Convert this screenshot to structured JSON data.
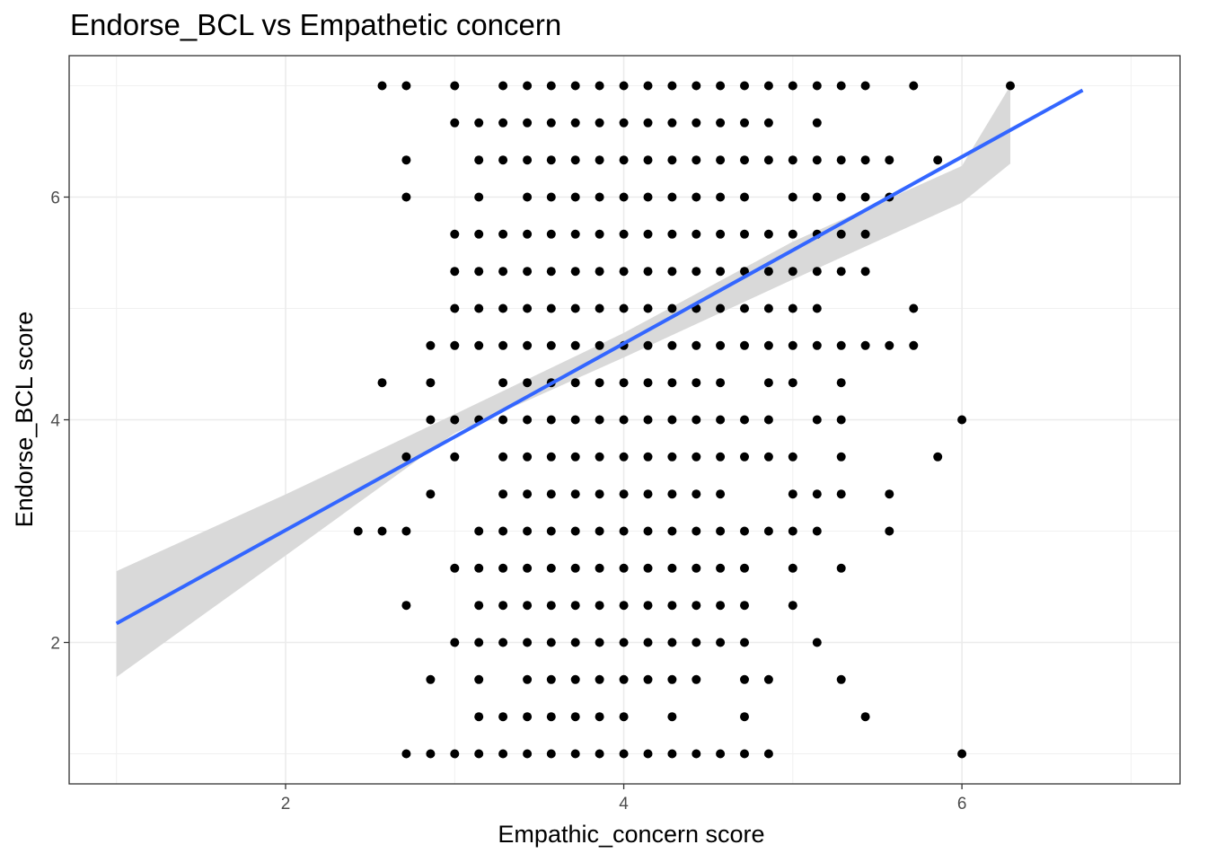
{
  "chart_data": {
    "type": "scatter",
    "title": "Endorse_BCL vs Empathetic concern",
    "xlabel": "Empathic_concern score",
    "ylabel": "Endorse_BCL score",
    "xlim": [
      0.72,
      7.29
    ],
    "ylim": [
      0.73,
      7.27
    ],
    "x_ticks": [
      2,
      4,
      6
    ],
    "y_ticks": [
      2,
      4,
      6
    ],
    "x_minor_ticks": [
      1,
      3,
      5,
      7
    ],
    "y_minor_ticks": [
      1,
      3,
      5,
      7
    ],
    "grid": true,
    "point_color": "#000000",
    "points": [
      [
        2.571,
        7
      ],
      [
        2.714,
        7
      ],
      [
        3,
        7
      ],
      [
        3.286,
        7
      ],
      [
        3.429,
        7
      ],
      [
        3.571,
        7
      ],
      [
        3.714,
        7
      ],
      [
        3.857,
        7
      ],
      [
        4,
        7
      ],
      [
        4.143,
        7
      ],
      [
        4.286,
        7
      ],
      [
        4.429,
        7
      ],
      [
        4.571,
        7
      ],
      [
        4.714,
        7
      ],
      [
        4.857,
        7
      ],
      [
        5,
        7
      ],
      [
        5.143,
        7
      ],
      [
        5.286,
        7
      ],
      [
        5.429,
        7
      ],
      [
        5.714,
        7
      ],
      [
        6.286,
        7
      ],
      [
        3,
        6.667
      ],
      [
        3.143,
        6.667
      ],
      [
        3.286,
        6.667
      ],
      [
        3.429,
        6.667
      ],
      [
        3.571,
        6.667
      ],
      [
        3.714,
        6.667
      ],
      [
        3.857,
        6.667
      ],
      [
        4,
        6.667
      ],
      [
        4.143,
        6.667
      ],
      [
        4.286,
        6.667
      ],
      [
        4.429,
        6.667
      ],
      [
        4.571,
        6.667
      ],
      [
        4.714,
        6.667
      ],
      [
        4.857,
        6.667
      ],
      [
        5.143,
        6.667
      ],
      [
        2.714,
        6.333
      ],
      [
        3.143,
        6.333
      ],
      [
        3.286,
        6.333
      ],
      [
        3.429,
        6.333
      ],
      [
        3.571,
        6.333
      ],
      [
        3.714,
        6.333
      ],
      [
        3.857,
        6.333
      ],
      [
        4,
        6.333
      ],
      [
        4.143,
        6.333
      ],
      [
        4.286,
        6.333
      ],
      [
        4.429,
        6.333
      ],
      [
        4.571,
        6.333
      ],
      [
        4.714,
        6.333
      ],
      [
        4.857,
        6.333
      ],
      [
        5,
        6.333
      ],
      [
        5.143,
        6.333
      ],
      [
        5.286,
        6.333
      ],
      [
        5.429,
        6.333
      ],
      [
        5.571,
        6.333
      ],
      [
        5.857,
        6.333
      ],
      [
        2.714,
        6
      ],
      [
        3.143,
        6
      ],
      [
        3.429,
        6
      ],
      [
        3.571,
        6
      ],
      [
        3.714,
        6
      ],
      [
        3.857,
        6
      ],
      [
        4,
        6
      ],
      [
        4.143,
        6
      ],
      [
        4.286,
        6
      ],
      [
        4.429,
        6
      ],
      [
        4.571,
        6
      ],
      [
        4.714,
        6
      ],
      [
        5,
        6
      ],
      [
        5.143,
        6
      ],
      [
        5.286,
        6
      ],
      [
        5.429,
        6
      ],
      [
        5.571,
        6
      ],
      [
        3,
        5.667
      ],
      [
        3.143,
        5.667
      ],
      [
        3.286,
        5.667
      ],
      [
        3.429,
        5.667
      ],
      [
        3.571,
        5.667
      ],
      [
        3.714,
        5.667
      ],
      [
        3.857,
        5.667
      ],
      [
        4,
        5.667
      ],
      [
        4.143,
        5.667
      ],
      [
        4.286,
        5.667
      ],
      [
        4.429,
        5.667
      ],
      [
        4.571,
        5.667
      ],
      [
        4.714,
        5.667
      ],
      [
        4.857,
        5.667
      ],
      [
        5,
        5.667
      ],
      [
        5.143,
        5.667
      ],
      [
        5.286,
        5.667
      ],
      [
        5.429,
        5.667
      ],
      [
        3,
        5.333
      ],
      [
        3.143,
        5.333
      ],
      [
        3.286,
        5.333
      ],
      [
        3.429,
        5.333
      ],
      [
        3.571,
        5.333
      ],
      [
        3.714,
        5.333
      ],
      [
        3.857,
        5.333
      ],
      [
        4,
        5.333
      ],
      [
        4.143,
        5.333
      ],
      [
        4.286,
        5.333
      ],
      [
        4.429,
        5.333
      ],
      [
        4.571,
        5.333
      ],
      [
        4.714,
        5.333
      ],
      [
        4.857,
        5.333
      ],
      [
        5,
        5.333
      ],
      [
        5.143,
        5.333
      ],
      [
        5.286,
        5.333
      ],
      [
        5.429,
        5.333
      ],
      [
        3,
        5
      ],
      [
        3.143,
        5
      ],
      [
        3.286,
        5
      ],
      [
        3.429,
        5
      ],
      [
        3.571,
        5
      ],
      [
        3.714,
        5
      ],
      [
        3.857,
        5
      ],
      [
        4,
        5
      ],
      [
        4.143,
        5
      ],
      [
        4.286,
        5
      ],
      [
        4.429,
        5
      ],
      [
        4.571,
        5
      ],
      [
        4.714,
        5
      ],
      [
        4.857,
        5
      ],
      [
        5,
        5
      ],
      [
        5.143,
        5
      ],
      [
        5.714,
        5
      ],
      [
        2.857,
        4.667
      ],
      [
        3,
        4.667
      ],
      [
        3.143,
        4.667
      ],
      [
        3.286,
        4.667
      ],
      [
        3.429,
        4.667
      ],
      [
        3.571,
        4.667
      ],
      [
        3.714,
        4.667
      ],
      [
        3.857,
        4.667
      ],
      [
        4,
        4.667
      ],
      [
        4.143,
        4.667
      ],
      [
        4.286,
        4.667
      ],
      [
        4.429,
        4.667
      ],
      [
        4.571,
        4.667
      ],
      [
        4.714,
        4.667
      ],
      [
        4.857,
        4.667
      ],
      [
        5,
        4.667
      ],
      [
        5.143,
        4.667
      ],
      [
        5.286,
        4.667
      ],
      [
        5.429,
        4.667
      ],
      [
        5.571,
        4.667
      ],
      [
        5.714,
        4.667
      ],
      [
        2.571,
        4.333
      ],
      [
        2.857,
        4.333
      ],
      [
        3.286,
        4.333
      ],
      [
        3.429,
        4.333
      ],
      [
        3.571,
        4.333
      ],
      [
        3.714,
        4.333
      ],
      [
        3.857,
        4.333
      ],
      [
        4,
        4.333
      ],
      [
        4.143,
        4.333
      ],
      [
        4.286,
        4.333
      ],
      [
        4.429,
        4.333
      ],
      [
        4.571,
        4.333
      ],
      [
        4.857,
        4.333
      ],
      [
        5,
        4.333
      ],
      [
        5.286,
        4.333
      ],
      [
        2.857,
        4
      ],
      [
        3,
        4
      ],
      [
        3.143,
        4
      ],
      [
        3.286,
        4
      ],
      [
        3.429,
        4
      ],
      [
        3.571,
        4
      ],
      [
        3.714,
        4
      ],
      [
        3.857,
        4
      ],
      [
        4,
        4
      ],
      [
        4.143,
        4
      ],
      [
        4.286,
        4
      ],
      [
        4.429,
        4
      ],
      [
        4.571,
        4
      ],
      [
        4.714,
        4
      ],
      [
        4.857,
        4
      ],
      [
        5.143,
        4
      ],
      [
        5.286,
        4
      ],
      [
        6,
        4
      ],
      [
        2.714,
        3.667
      ],
      [
        3,
        3.667
      ],
      [
        3.286,
        3.667
      ],
      [
        3.429,
        3.667
      ],
      [
        3.571,
        3.667
      ],
      [
        3.714,
        3.667
      ],
      [
        3.857,
        3.667
      ],
      [
        4,
        3.667
      ],
      [
        4.143,
        3.667
      ],
      [
        4.286,
        3.667
      ],
      [
        4.429,
        3.667
      ],
      [
        4.571,
        3.667
      ],
      [
        4.714,
        3.667
      ],
      [
        4.857,
        3.667
      ],
      [
        5,
        3.667
      ],
      [
        5.286,
        3.667
      ],
      [
        5.857,
        3.667
      ],
      [
        2.857,
        3.333
      ],
      [
        3.286,
        3.333
      ],
      [
        3.429,
        3.333
      ],
      [
        3.571,
        3.333
      ],
      [
        3.714,
        3.333
      ],
      [
        3.857,
        3.333
      ],
      [
        4,
        3.333
      ],
      [
        4.143,
        3.333
      ],
      [
        4.286,
        3.333
      ],
      [
        4.429,
        3.333
      ],
      [
        4.571,
        3.333
      ],
      [
        5,
        3.333
      ],
      [
        5.143,
        3.333
      ],
      [
        5.286,
        3.333
      ],
      [
        5.571,
        3.333
      ],
      [
        2.429,
        3
      ],
      [
        2.571,
        3
      ],
      [
        2.714,
        3
      ],
      [
        3.143,
        3
      ],
      [
        3.286,
        3
      ],
      [
        3.429,
        3
      ],
      [
        3.571,
        3
      ],
      [
        3.714,
        3
      ],
      [
        3.857,
        3
      ],
      [
        4,
        3
      ],
      [
        4.143,
        3
      ],
      [
        4.286,
        3
      ],
      [
        4.429,
        3
      ],
      [
        4.571,
        3
      ],
      [
        4.714,
        3
      ],
      [
        4.857,
        3
      ],
      [
        5,
        3
      ],
      [
        5.143,
        3
      ],
      [
        5.571,
        3
      ],
      [
        3,
        2.667
      ],
      [
        3.143,
        2.667
      ],
      [
        3.286,
        2.667
      ],
      [
        3.429,
        2.667
      ],
      [
        3.571,
        2.667
      ],
      [
        3.714,
        2.667
      ],
      [
        3.857,
        2.667
      ],
      [
        4,
        2.667
      ],
      [
        4.143,
        2.667
      ],
      [
        4.286,
        2.667
      ],
      [
        4.429,
        2.667
      ],
      [
        4.571,
        2.667
      ],
      [
        4.714,
        2.667
      ],
      [
        5,
        2.667
      ],
      [
        5.286,
        2.667
      ],
      [
        2.714,
        2.333
      ],
      [
        3.143,
        2.333
      ],
      [
        3.286,
        2.333
      ],
      [
        3.429,
        2.333
      ],
      [
        3.571,
        2.333
      ],
      [
        3.714,
        2.333
      ],
      [
        3.857,
        2.333
      ],
      [
        4,
        2.333
      ],
      [
        4.143,
        2.333
      ],
      [
        4.286,
        2.333
      ],
      [
        4.429,
        2.333
      ],
      [
        4.571,
        2.333
      ],
      [
        4.714,
        2.333
      ],
      [
        5,
        2.333
      ],
      [
        3,
        2
      ],
      [
        3.143,
        2
      ],
      [
        3.286,
        2
      ],
      [
        3.429,
        2
      ],
      [
        3.571,
        2
      ],
      [
        3.714,
        2
      ],
      [
        3.857,
        2
      ],
      [
        4,
        2
      ],
      [
        4.143,
        2
      ],
      [
        4.286,
        2
      ],
      [
        4.429,
        2
      ],
      [
        4.571,
        2
      ],
      [
        4.714,
        2
      ],
      [
        5.143,
        2
      ],
      [
        2.857,
        1.667
      ],
      [
        3.143,
        1.667
      ],
      [
        3.429,
        1.667
      ],
      [
        3.571,
        1.667
      ],
      [
        3.714,
        1.667
      ],
      [
        3.857,
        1.667
      ],
      [
        4,
        1.667
      ],
      [
        4.143,
        1.667
      ],
      [
        4.286,
        1.667
      ],
      [
        4.429,
        1.667
      ],
      [
        4.714,
        1.667
      ],
      [
        4.857,
        1.667
      ],
      [
        5.286,
        1.667
      ],
      [
        3.143,
        1.333
      ],
      [
        3.286,
        1.333
      ],
      [
        3.429,
        1.333
      ],
      [
        3.571,
        1.333
      ],
      [
        3.714,
        1.333
      ],
      [
        3.857,
        1.333
      ],
      [
        4,
        1.333
      ],
      [
        4.286,
        1.333
      ],
      [
        4.714,
        1.333
      ],
      [
        5.429,
        1.333
      ],
      [
        2.714,
        1
      ],
      [
        2.857,
        1
      ],
      [
        3,
        1
      ],
      [
        3.143,
        1
      ],
      [
        3.286,
        1
      ],
      [
        3.429,
        1
      ],
      [
        3.571,
        1
      ],
      [
        3.714,
        1
      ],
      [
        3.857,
        1
      ],
      [
        4,
        1
      ],
      [
        4.143,
        1
      ],
      [
        4.286,
        1
      ],
      [
        4.429,
        1
      ],
      [
        4.571,
        1
      ],
      [
        4.714,
        1
      ],
      [
        4.857,
        1
      ],
      [
        6,
        1
      ]
    ],
    "trend_line": {
      "method": "linear regression",
      "color": "#3366ff",
      "x_range": [
        1,
        6.714
      ],
      "y_at_x_min": 2.17,
      "y_at_x_max": 6.96
    },
    "confidence_band": {
      "color": "#d9d9d9",
      "x": [
        1,
        2,
        3,
        4,
        5,
        6,
        6.286
      ],
      "lower": [
        1.69,
        2.78,
        3.88,
        4.56,
        5.26,
        5.95,
        6.3
      ],
      "upper": [
        2.64,
        3.33,
        4.05,
        4.78,
        5.6,
        6.28,
        7
      ]
    }
  }
}
